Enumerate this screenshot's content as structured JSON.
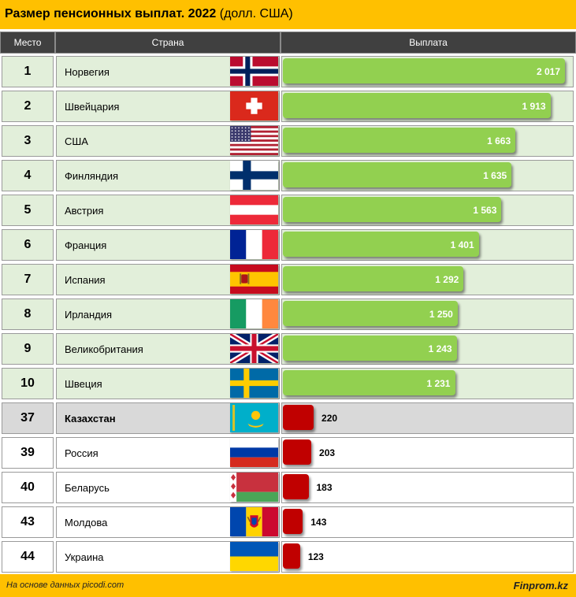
{
  "header": {
    "title_bold": "Размер пенсионных выплат. 2022",
    "title_unit": "(долл. США)"
  },
  "columns": {
    "rank": "Место",
    "country": "Страна",
    "payment": "Выплата"
  },
  "footer": {
    "source": "На основе данных picodi.com",
    "brand": "Finprom.kz"
  },
  "colors": {
    "top10_row": "#e2efda",
    "highlight_row": "#d9d9d9",
    "other_row": "#ffffff",
    "green_bar": "#92d050",
    "red_bar": "#c00000",
    "accent": "#ffc000"
  },
  "chart_data": {
    "type": "bar",
    "orientation": "horizontal",
    "title": "Размер пенсионных выплат. 2022 (долл. США)",
    "xlabel": "Выплата",
    "ylabel": "Страна",
    "rows": [
      {
        "rank": "1",
        "country": "Норвегия",
        "flag": "norway-flag",
        "value": 2017,
        "label": "2 017",
        "group": "top"
      },
      {
        "rank": "2",
        "country": "Швейцария",
        "flag": "switzerland-flag",
        "value": 1913,
        "label": "1 913",
        "group": "top"
      },
      {
        "rank": "3",
        "country": "США",
        "flag": "usa-flag",
        "value": 1663,
        "label": "1 663",
        "group": "top"
      },
      {
        "rank": "4",
        "country": "Финляндия",
        "flag": "finland-flag",
        "value": 1635,
        "label": "1 635",
        "group": "top"
      },
      {
        "rank": "5",
        "country": "Австрия",
        "flag": "austria-flag",
        "value": 1563,
        "label": "1 563",
        "group": "top"
      },
      {
        "rank": "6",
        "country": "Франция",
        "flag": "france-flag",
        "value": 1401,
        "label": "1 401",
        "group": "top"
      },
      {
        "rank": "7",
        "country": "Испания",
        "flag": "spain-flag",
        "value": 1292,
        "label": "1 292",
        "group": "top"
      },
      {
        "rank": "8",
        "country": "Ирландия",
        "flag": "ireland-flag",
        "value": 1250,
        "label": "1 250",
        "group": "top"
      },
      {
        "rank": "9",
        "country": "Великобритания",
        "flag": "uk-flag",
        "value": 1243,
        "label": "1 243",
        "group": "top"
      },
      {
        "rank": "10",
        "country": "Швеция",
        "flag": "sweden-flag",
        "value": 1231,
        "label": "1 231",
        "group": "top"
      },
      {
        "rank": "37",
        "country": "Казахстан",
        "flag": "kazakhstan-flag",
        "value": 220,
        "label": "220",
        "group": "highlight"
      },
      {
        "rank": "39",
        "country": "Россия",
        "flag": "russia-flag",
        "value": 203,
        "label": "203",
        "group": "other"
      },
      {
        "rank": "40",
        "country": "Беларусь",
        "flag": "belarus-flag",
        "value": 183,
        "label": "183",
        "group": "other"
      },
      {
        "rank": "43",
        "country": "Молдова",
        "flag": "moldova-flag",
        "value": 143,
        "label": "143",
        "group": "other"
      },
      {
        "rank": "44",
        "country": "Украина",
        "flag": "ukraine-flag",
        "value": 123,
        "label": "123",
        "group": "other"
      }
    ]
  }
}
